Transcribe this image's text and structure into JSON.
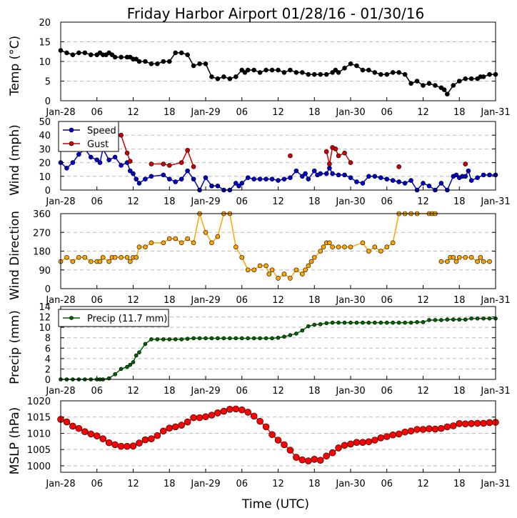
{
  "title": "Friday Harbor Airport 01/28/16 - 01/30/16",
  "xlabel": "Time (UTC)",
  "x_tick_labels": [
    "Jan-28",
    "06",
    "12",
    "18",
    "Jan-29",
    "06",
    "12",
    "18",
    "Jan-30",
    "06",
    "12",
    "18",
    "Jan-31"
  ],
  "colors": {
    "temp": "#000000",
    "speed": "#0000cc",
    "gust": "#cc0000",
    "direction": "#ffa500",
    "precip": "#006400",
    "mslp": "#ff0000"
  },
  "chart_data": [
    {
      "type": "line",
      "ylabel": "Temp (°C)",
      "ylim": [
        0,
        20
      ],
      "y_ticks": [
        0,
        5,
        10,
        15,
        20
      ],
      "grid": "horizontal-dashed",
      "series": [
        {
          "x": [
            0,
            1,
            2,
            3,
            4,
            5,
            6,
            6.5,
            7,
            7.5,
            8,
            8.5,
            9,
            10,
            11,
            11.5,
            12,
            12.5,
            13,
            14,
            15,
            16,
            17,
            18,
            19,
            20,
            21,
            22,
            23,
            24,
            25,
            26,
            27,
            28,
            29,
            30,
            30.5,
            31,
            32,
            33,
            34,
            35,
            36,
            37,
            38,
            39,
            40,
            41,
            42,
            43,
            44,
            45,
            45.5,
            46,
            47,
            48,
            49,
            50,
            51,
            52,
            53,
            54,
            55,
            56,
            57,
            58,
            59,
            60,
            61,
            62,
            63,
            63.5,
            64,
            65,
            66,
            67,
            68,
            69,
            69.5,
            70,
            71,
            72
          ],
          "values": [
            12.8,
            12.2,
            11.7,
            12.2,
            12.2,
            11.7,
            11.7,
            12.2,
            11.7,
            11.7,
            12.2,
            11.7,
            11.1,
            11.1,
            11.1,
            11.1,
            10.6,
            10.6,
            10.0,
            10.0,
            9.4,
            9.4,
            10.0,
            10.0,
            12.2,
            12.2,
            11.7,
            8.9,
            9.4,
            9.4,
            6.1,
            5.6,
            6.1,
            5.6,
            6.1,
            7.8,
            7.2,
            7.8,
            7.8,
            7.2,
            7.8,
            7.8,
            7.8,
            7.2,
            7.8,
            7.2,
            7.2,
            6.7,
            6.7,
            6.7,
            6.7,
            7.2,
            7.8,
            7.2,
            8.3,
            9.4,
            8.9,
            7.8,
            7.8,
            7.2,
            6.7,
            6.7,
            7.2,
            7.2,
            6.7,
            4.4,
            5.0,
            3.9,
            4.4,
            3.9,
            3.3,
            2.8,
            1.7,
            3.9,
            5.0,
            5.6,
            5.6,
            5.6,
            6.1,
            6.1,
            6.7,
            6.7
          ]
        }
      ]
    },
    {
      "type": "line",
      "ylabel": "Wind (mph)",
      "ylim": [
        0,
        50
      ],
      "y_ticks": [
        0,
        10,
        20,
        30,
        40,
        50
      ],
      "grid": "horizontal-dashed",
      "legend": "upper-left",
      "series": [
        {
          "name": "Speed",
          "x": [
            0,
            1,
            2,
            3,
            4,
            5,
            6,
            6.5,
            7,
            8,
            9,
            10,
            11,
            11.5,
            12,
            12.5,
            13,
            14,
            15,
            17,
            18,
            19,
            20,
            21,
            22,
            23,
            24,
            25,
            26,
            27,
            28,
            29,
            29.5,
            30,
            31,
            32,
            33,
            34,
            35,
            36,
            37,
            38,
            39,
            40,
            40.5,
            41,
            42,
            42.5,
            43,
            44,
            44.5,
            45,
            46,
            47,
            48,
            49,
            50,
            51,
            52,
            53,
            54,
            55,
            56,
            57,
            58,
            59,
            60,
            61,
            62,
            63,
            64,
            65,
            65.5,
            66,
            66.5,
            67,
            67.5,
            68,
            69,
            70,
            71,
            72
          ],
          "values": [
            20,
            16,
            20,
            26,
            30,
            24,
            22,
            20,
            30,
            22,
            24,
            18,
            20,
            14,
            12,
            8,
            5,
            8,
            10,
            11,
            8,
            6,
            8,
            14,
            8,
            0,
            9,
            3,
            3,
            0,
            0,
            5,
            3,
            5,
            9,
            8,
            8,
            8,
            8,
            7,
            8,
            9,
            14,
            10,
            12,
            8,
            14,
            11,
            12,
            12,
            16,
            12,
            11,
            11,
            9,
            6,
            5,
            10,
            10,
            9,
            8,
            7,
            6,
            5,
            7,
            0,
            5,
            3,
            0,
            5,
            0,
            10,
            11,
            9,
            10,
            10,
            14,
            7,
            9,
            11,
            11,
            11
          ]
        },
        {
          "name": "Gust",
          "x": [
            10,
            11,
            11.5,
            15,
            17,
            18,
            20,
            21,
            22,
            38,
            44,
            44.5,
            45,
            45.5,
            46,
            47,
            48,
            56,
            67
          ],
          "values": [
            40,
            27,
            21,
            19,
            19,
            18,
            20,
            29,
            17,
            25,
            28,
            19,
            31,
            30,
            25,
            27,
            20,
            17,
            19
          ]
        }
      ]
    },
    {
      "type": "scatter",
      "ylabel": "Wind Direction",
      "ylim": [
        0,
        360
      ],
      "y_ticks": [
        0,
        90,
        180,
        270,
        360
      ],
      "grid": "horizontal-dashed",
      "series": [
        {
          "x": [
            0,
            1,
            2,
            3,
            4,
            5,
            6,
            6.5,
            7,
            8,
            8.5,
            9,
            10,
            11,
            11.5,
            12,
            12.5,
            13,
            14,
            15,
            17,
            18,
            19,
            20,
            21,
            22,
            23,
            24,
            25,
            26,
            27,
            28,
            29,
            30,
            31,
            32,
            33,
            34,
            34.5,
            35,
            36,
            37,
            38,
            39,
            40,
            40.5,
            41,
            41.5,
            42,
            43,
            43.5,
            44,
            44.5,
            45,
            46,
            47,
            48,
            50,
            51,
            52,
            53,
            54,
            55,
            56,
            57,
            58,
            59,
            61,
            61.5,
            62,
            63,
            64,
            64.5,
            65,
            65.5,
            66,
            67,
            68,
            69,
            69.5,
            70,
            71
          ],
          "values": [
            130,
            150,
            130,
            150,
            150,
            130,
            130,
            130,
            150,
            130,
            150,
            150,
            150,
            150,
            130,
            150,
            150,
            200,
            200,
            220,
            220,
            240,
            240,
            220,
            240,
            220,
            360,
            270,
            220,
            250,
            360,
            360,
            200,
            150,
            90,
            90,
            110,
            110,
            70,
            90,
            50,
            70,
            50,
            90,
            70,
            90,
            110,
            130,
            150,
            180,
            200,
            220,
            220,
            200,
            200,
            200,
            200,
            220,
            180,
            200,
            180,
            200,
            220,
            360,
            360,
            360,
            360,
            360,
            360,
            360,
            130,
            130,
            150,
            150,
            130,
            150,
            150,
            150,
            130,
            150,
            130,
            130
          ]
        }
      ]
    },
    {
      "type": "line",
      "ylabel": "Precip (mm)",
      "ylim": [
        0,
        14
      ],
      "y_ticks": [
        0,
        2,
        4,
        6,
        8,
        10,
        12,
        14
      ],
      "grid": "horizontal-dashed",
      "legend": "upper-left",
      "series": [
        {
          "name": "Precip (11.7 mm)",
          "x": [
            0,
            1,
            2,
            3,
            4,
            5,
            6,
            6.5,
            7,
            8,
            9,
            10,
            11,
            11.5,
            12,
            12.5,
            13,
            14,
            15,
            16,
            17,
            18,
            19,
            20,
            21,
            22,
            23,
            24,
            25,
            26,
            27,
            28,
            29,
            30,
            31,
            32,
            33,
            34,
            35,
            36,
            37,
            38,
            39,
            40,
            41,
            42,
            43,
            44,
            45,
            46,
            47,
            48,
            49,
            50,
            51,
            52,
            53,
            54,
            55,
            56,
            57,
            58,
            59,
            60,
            61,
            62,
            63,
            64,
            65,
            66,
            67,
            68,
            69,
            70,
            71,
            72
          ],
          "values": [
            0,
            0,
            0,
            0,
            0,
            0,
            0,
            0,
            0,
            0.2,
            1.0,
            2.0,
            2.4,
            2.8,
            3.3,
            4.6,
            5.2,
            6.8,
            7.7,
            7.7,
            7.7,
            7.7,
            7.7,
            7.7,
            7.8,
            7.9,
            7.9,
            7.9,
            7.9,
            7.9,
            7.9,
            7.9,
            7.9,
            7.9,
            7.9,
            7.9,
            7.9,
            7.9,
            7.9,
            8.0,
            8.2,
            8.5,
            8.8,
            9.4,
            10.2,
            10.5,
            10.6,
            10.8,
            10.9,
            10.9,
            10.9,
            10.9,
            10.9,
            10.9,
            10.9,
            10.9,
            10.9,
            10.9,
            10.9,
            10.9,
            10.9,
            10.9,
            11.0,
            11.0,
            11.4,
            11.4,
            11.4,
            11.5,
            11.5,
            11.5,
            11.5,
            11.7,
            11.7,
            11.7,
            11.7,
            11.7
          ]
        }
      ]
    },
    {
      "type": "line",
      "ylabel": "MSLP (hPa)",
      "ylim": [
        998,
        1020
      ],
      "y_ticks": [
        1000,
        1005,
        1010,
        1015,
        1020
      ],
      "grid": "horizontal-dashed",
      "series": [
        {
          "x": [
            0,
            1,
            2,
            3,
            4,
            5,
            6,
            7,
            8,
            9,
            10,
            11,
            12,
            13,
            14,
            15,
            16,
            17,
            18,
            19,
            20,
            21,
            22,
            23,
            24,
            25,
            26,
            27,
            28,
            29,
            30,
            31,
            32,
            33,
            34,
            35,
            36,
            37,
            38,
            39,
            40,
            41,
            42,
            43,
            44,
            45,
            46,
            47,
            48,
            49,
            50,
            51,
            52,
            53,
            54,
            55,
            56,
            57,
            58,
            59,
            60,
            61,
            62,
            63,
            64,
            65,
            66,
            67,
            68,
            69,
            70,
            71,
            72
          ],
          "values": [
            1014.3,
            1013.5,
            1012.2,
            1011.5,
            1010.5,
            1009.8,
            1009.2,
            1008.3,
            1007.1,
            1006.5,
            1006.0,
            1006.0,
            1006.1,
            1007.0,
            1008.0,
            1008.3,
            1009.3,
            1010.7,
            1011.6,
            1012.0,
            1012.5,
            1013.5,
            1014.8,
            1014.8,
            1015.1,
            1015.6,
            1016.3,
            1016.8,
            1017.4,
            1017.5,
            1017.2,
            1016.5,
            1015.3,
            1013.7,
            1012.0,
            1009.6,
            1007.9,
            1006.5,
            1004.8,
            1002.6,
            1001.8,
            1001.5,
            1002.0,
            1001.7,
            1003.0,
            1004.0,
            1005.5,
            1006.3,
            1006.7,
            1007.2,
            1007.2,
            1007.4,
            1007.9,
            1008.6,
            1009.0,
            1009.5,
            1009.8,
            1010.4,
            1010.7,
            1011.2,
            1011.2,
            1011.4,
            1011.3,
            1011.5,
            1012.0,
            1012.3,
            1013.0,
            1012.9,
            1013.0,
            1013.1,
            1013.1,
            1013.3,
            1013.4
          ]
        }
      ]
    }
  ]
}
